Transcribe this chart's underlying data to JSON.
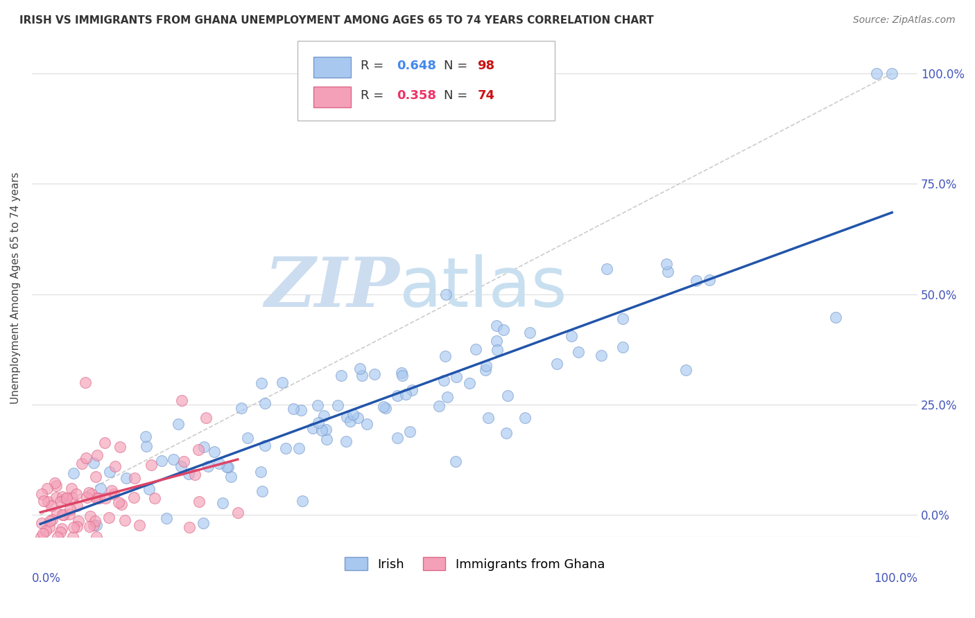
{
  "title": "IRISH VS IMMIGRANTS FROM GHANA UNEMPLOYMENT AMONG AGES 65 TO 74 YEARS CORRELATION CHART",
  "source": "Source: ZipAtlas.com",
  "ylabel": "Unemployment Among Ages 65 to 74 years",
  "xlim": [
    0,
    1
  ],
  "ylim": [
    -0.05,
    1.08
  ],
  "ytick_labels": [
    "0.0%",
    "25.0%",
    "50.0%",
    "75.0%",
    "100.0%"
  ],
  "ytick_values": [
    0,
    0.25,
    0.5,
    0.75,
    1.0
  ],
  "irish_R": 0.648,
  "irish_N": 98,
  "ghana_R": 0.358,
  "ghana_N": 74,
  "irish_color": "#a8c8f0",
  "irish_edge_color": "#7799cc",
  "ghana_color": "#f4a0b8",
  "ghana_edge_color": "#dd6688",
  "irish_line_color": "#2255aa",
  "ghana_line_color": "#dd4466",
  "diagonal_color": "#cccccc",
  "watermark_zip_color": "#ccddf0",
  "watermark_atlas_color": "#c8dff0",
  "background_color": "#ffffff",
  "grid_color": "#dddddd",
  "title_color": "#333333",
  "axis_label_color": "#4455bb",
  "legend_R_irish_color": "#4488ee",
  "legend_R_ghana_color": "#ee3366",
  "legend_N_color": "#cc1111"
}
